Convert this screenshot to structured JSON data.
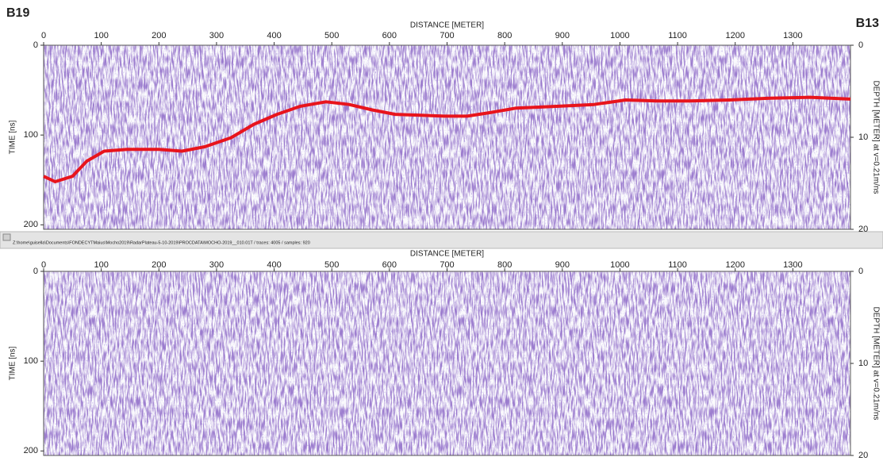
{
  "chart_data": [
    {
      "type": "line",
      "annotations": [
        "B19",
        "B13"
      ],
      "xlabel": "DISTANCE [METER]",
      "ylabel": "TIME [ns]",
      "y2label": "DEPTH [METER] at v=0.21m/ns",
      "xlim": [
        0,
        1400
      ],
      "xticks": [
        0,
        100,
        200,
        300,
        400,
        500,
        600,
        700,
        800,
        900,
        1000,
        1100,
        1200,
        1300
      ],
      "ylim": [
        0,
        205
      ],
      "yticks": [
        0,
        100,
        200
      ],
      "y2lim": [
        0,
        20
      ],
      "y2ticks": [
        0,
        10,
        20
      ],
      "x": [
        0,
        20,
        50,
        75,
        105,
        145,
        200,
        240,
        280,
        325,
        365,
        405,
        445,
        490,
        530,
        570,
        610,
        655,
        695,
        735,
        775,
        820,
        890,
        955,
        1010,
        1065,
        1120,
        1190,
        1260,
        1330,
        1400
      ],
      "series": [
        {
          "color": "#e8141c",
          "values": [
            146,
            152,
            146,
            129,
            118,
            116,
            116,
            118,
            113,
            103,
            88,
            77,
            68,
            63,
            66,
            72,
            77,
            78,
            79,
            79,
            75,
            70,
            68,
            66,
            61,
            62,
            62,
            61,
            59,
            58,
            60
          ]
        }
      ]
    },
    {
      "type": "radargram",
      "xlabel": "DISTANCE [METER]",
      "ylabel": "TIME [ns]",
      "y2label": "DEPTH [METER] at v=0.21m/ns",
      "xlim": [
        0,
        1400
      ],
      "xticks": [
        0,
        100,
        200,
        300,
        400,
        500,
        600,
        700,
        800,
        900,
        1000,
        1100,
        1200,
        1300
      ],
      "ylim": [
        0,
        205
      ],
      "yticks": [
        0,
        100,
        200
      ],
      "y2lim": [
        0,
        20
      ],
      "y2ticks": [
        0,
        10,
        20
      ]
    }
  ],
  "status_bar": "Z:\\home\\guisella\\Documents\\FONDECYTMaius\\Mocho2019\\RadarPlateau-5-10-2019\\PROCDATA\\MOCHO-2019__010.01T / traces: 4005 / samples: 920"
}
